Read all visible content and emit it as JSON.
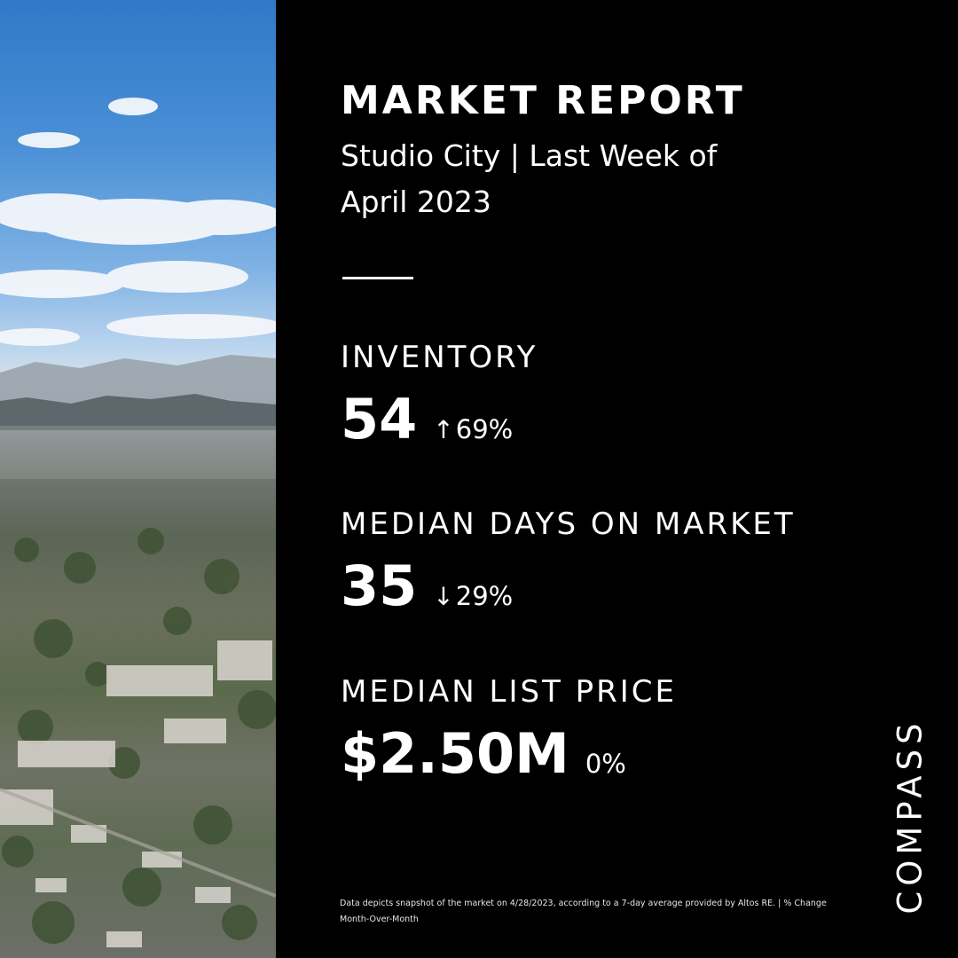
{
  "header": {
    "title": "MARKET REPORT",
    "subtitle": "Studio City | Last Week of April 2023"
  },
  "metrics": [
    {
      "label": "INVENTORY",
      "value": "54",
      "direction": "up",
      "arrow": "↑",
      "change": "69%"
    },
    {
      "label": "MEDIAN DAYS ON MARKET",
      "value": "35",
      "direction": "down",
      "arrow": "↓",
      "change": "29%"
    },
    {
      "label": "MEDIAN LIST PRICE",
      "value": "$2.50M",
      "direction": "none",
      "arrow": "",
      "change": "0%"
    }
  ],
  "footnote": "Data depicts snapshot of the market on 4/28/2023, according to a 7-day average provided by Altos RE. | % Change Month-Over-Month",
  "brand": {
    "logo_text": "COMPASS"
  },
  "colors": {
    "background": "#000000",
    "text": "#ffffff",
    "sky": "#4a8fd6"
  }
}
